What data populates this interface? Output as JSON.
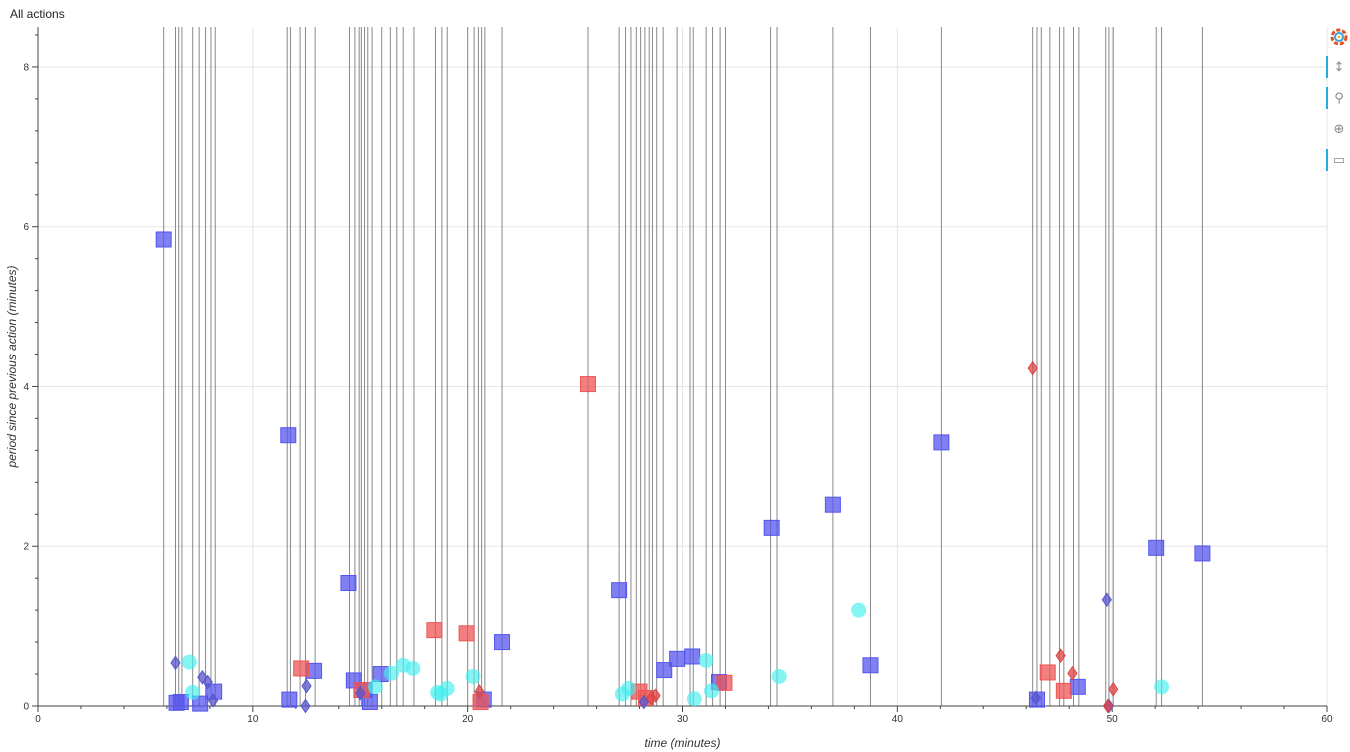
{
  "title": "All actions",
  "toolbar": {
    "logo_icon": "bokeh-logo-icon",
    "tools": [
      {
        "name": "pan-tool",
        "glyph": "↕",
        "active": true
      },
      {
        "name": "wheel-zoom-tool",
        "glyph": "⚲",
        "active": true
      },
      {
        "name": "crosshair-tool",
        "glyph": "⊕",
        "active": false
      },
      {
        "name": "hover-tool",
        "glyph": "▭",
        "active": true
      }
    ]
  },
  "chart_data": {
    "type": "scatter",
    "title": "All actions",
    "xlabel": "time (minutes)",
    "ylabel": "period since previous action (minutes)",
    "xlim": [
      0,
      60
    ],
    "ylim": [
      0,
      8.5
    ],
    "xticks": [
      0,
      10,
      20,
      30,
      40,
      50,
      60
    ],
    "yticks": [
      0,
      2,
      4,
      6,
      8
    ],
    "grid": true,
    "vlines_color": "#888888",
    "vlines": [
      5.85,
      6.4,
      6.55,
      6.7,
      7.2,
      7.5,
      7.8,
      8.05,
      8.25,
      11.6,
      11.75,
      12.2,
      12.45,
      12.9,
      14.5,
      14.75,
      14.95,
      15.05,
      15.2,
      15.35,
      15.55,
      16.0,
      16.4,
      16.7,
      17.0,
      17.5,
      18.5,
      18.8,
      19.05,
      20.0,
      20.3,
      20.5,
      20.65,
      20.8,
      21.6,
      25.6,
      27.05,
      27.35,
      27.6,
      27.85,
      28.05,
      28.25,
      28.45,
      28.6,
      28.8,
      29.1,
      29.75,
      30.35,
      30.5,
      31.1,
      31.4,
      31.75,
      32.0,
      34.1,
      34.4,
      37.0,
      38.75,
      42.05,
      46.3,
      46.5,
      46.7,
      47.1,
      47.55,
      47.75,
      48.2,
      48.45,
      49.7,
      49.85,
      50.05,
      52.05,
      52.3,
      54.2
    ],
    "series": [
      {
        "marker": "square",
        "color": "#5555ee",
        "points": [
          [
            5.85,
            5.84
          ],
          [
            6.45,
            0.04
          ],
          [
            6.65,
            0.05
          ],
          [
            7.55,
            0.03
          ],
          [
            8.2,
            0.18
          ],
          [
            11.65,
            3.39
          ],
          [
            11.7,
            0.08
          ],
          [
            12.85,
            0.44
          ],
          [
            14.45,
            1.54
          ],
          [
            14.7,
            0.32
          ],
          [
            15.2,
            0.2
          ],
          [
            15.45,
            0.05
          ],
          [
            15.95,
            0.4
          ],
          [
            20.75,
            0.08
          ],
          [
            21.6,
            0.8
          ],
          [
            27.05,
            1.45
          ],
          [
            29.15,
            0.45
          ],
          [
            29.75,
            0.59
          ],
          [
            30.45,
            0.62
          ],
          [
            31.7,
            0.3
          ],
          [
            34.15,
            2.23
          ],
          [
            37.0,
            2.52
          ],
          [
            38.75,
            0.51
          ],
          [
            42.05,
            3.3
          ],
          [
            46.5,
            0.08
          ],
          [
            48.4,
            0.24
          ],
          [
            52.05,
            1.98
          ],
          [
            54.2,
            1.91
          ]
        ]
      },
      {
        "marker": "square",
        "color": "#ee5555",
        "points": [
          [
            12.25,
            0.47
          ],
          [
            15.05,
            0.2
          ],
          [
            18.45,
            0.95
          ],
          [
            19.95,
            0.91
          ],
          [
            20.6,
            0.05
          ],
          [
            25.6,
            4.03
          ],
          [
            28.0,
            0.18
          ],
          [
            28.3,
            0.1
          ],
          [
            31.95,
            0.29
          ],
          [
            47.0,
            0.42
          ],
          [
            47.75,
            0.19
          ]
        ]
      },
      {
        "marker": "circle",
        "color": "#44eeee",
        "points": [
          [
            7.05,
            0.55
          ],
          [
            7.2,
            0.17
          ],
          [
            15.7,
            0.24
          ],
          [
            16.45,
            0.41
          ],
          [
            17.0,
            0.51
          ],
          [
            17.45,
            0.47
          ],
          [
            18.6,
            0.17
          ],
          [
            18.75,
            0.15
          ],
          [
            19.05,
            0.22
          ],
          [
            20.25,
            0.37
          ],
          [
            27.2,
            0.15
          ],
          [
            27.5,
            0.22
          ],
          [
            30.55,
            0.09
          ],
          [
            31.1,
            0.57
          ],
          [
            31.35,
            0.19
          ],
          [
            34.5,
            0.37
          ],
          [
            38.2,
            1.2
          ],
          [
            52.3,
            0.24
          ]
        ]
      },
      {
        "marker": "diamond",
        "color": "#5555cc",
        "points": [
          [
            6.4,
            0.54
          ],
          [
            7.65,
            0.36
          ],
          [
            7.9,
            0.3
          ],
          [
            8.15,
            0.07
          ],
          [
            12.5,
            0.25
          ],
          [
            12.45,
            0.0
          ],
          [
            15.0,
            0.16
          ],
          [
            28.2,
            0.05
          ],
          [
            46.45,
            0.1
          ],
          [
            49.75,
            1.33
          ],
          [
            49.85,
            0.0
          ]
        ]
      },
      {
        "marker": "diamond",
        "color": "#dd4444",
        "points": [
          [
            20.55,
            0.18
          ],
          [
            28.55,
            0.1
          ],
          [
            28.75,
            0.13
          ],
          [
            46.3,
            4.23
          ],
          [
            47.6,
            0.63
          ],
          [
            48.15,
            0.41
          ],
          [
            49.8,
            0.0
          ],
          [
            50.05,
            0.21
          ]
        ]
      }
    ]
  }
}
